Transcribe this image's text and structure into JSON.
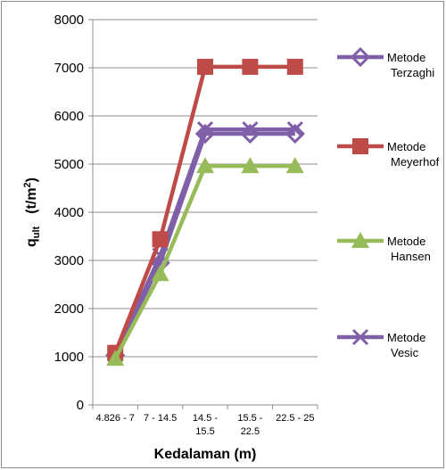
{
  "chart_data": {
    "type": "line",
    "categories": [
      "4.826 - 7",
      "7 - 14.5",
      "14.5 - 15.5",
      "15.5 - 22.5",
      "22.5 - 25"
    ],
    "category_lines": [
      [
        "4.826 - 7"
      ],
      [
        "7 - 14.5"
      ],
      [
        "14.5 -",
        "15.5"
      ],
      [
        "15.5 -",
        "22.5"
      ],
      [
        "22.5 - 25"
      ]
    ],
    "ylim": [
      0,
      8000
    ],
    "yticks": [
      0,
      1000,
      2000,
      3000,
      4000,
      5000,
      6000,
      7000,
      8000
    ],
    "xlabel": "Kedalaman (m)",
    "ylabel_main": "q",
    "ylabel_sub": "ult",
    "ylabel_unit": "(t/m",
    "ylabel_unit_sup": "2",
    "ylabel_unit_close": ")",
    "grid": true,
    "legend_position": "right",
    "series": [
      {
        "name": "Metode Terzaghi",
        "name_lines": [
          "Metode",
          "Terzaghi"
        ],
        "marker": "diamond",
        "color": "#7f5fa8",
        "values": [
          1030,
          2950,
          5630,
          5630,
          5630
        ]
      },
      {
        "name": "Metode Meyerhof",
        "name_lines": [
          "Metode",
          "Meyerhof"
        ],
        "marker": "square",
        "color": "#be4b48",
        "values": [
          1080,
          3440,
          7020,
          7020,
          7020
        ]
      },
      {
        "name": "Metode Hansen",
        "name_lines": [
          "Metode",
          "Hansen"
        ],
        "marker": "triangle",
        "color": "#98bb59",
        "values": [
          960,
          2720,
          4960,
          4960,
          4960
        ]
      },
      {
        "name": "Metode Vesic",
        "name_lines": [
          "Metode",
          "Vesic"
        ],
        "marker": "x",
        "color": "#7f5fa8",
        "values": [
          1050,
          3100,
          5720,
          5720,
          5720
        ]
      }
    ]
  }
}
